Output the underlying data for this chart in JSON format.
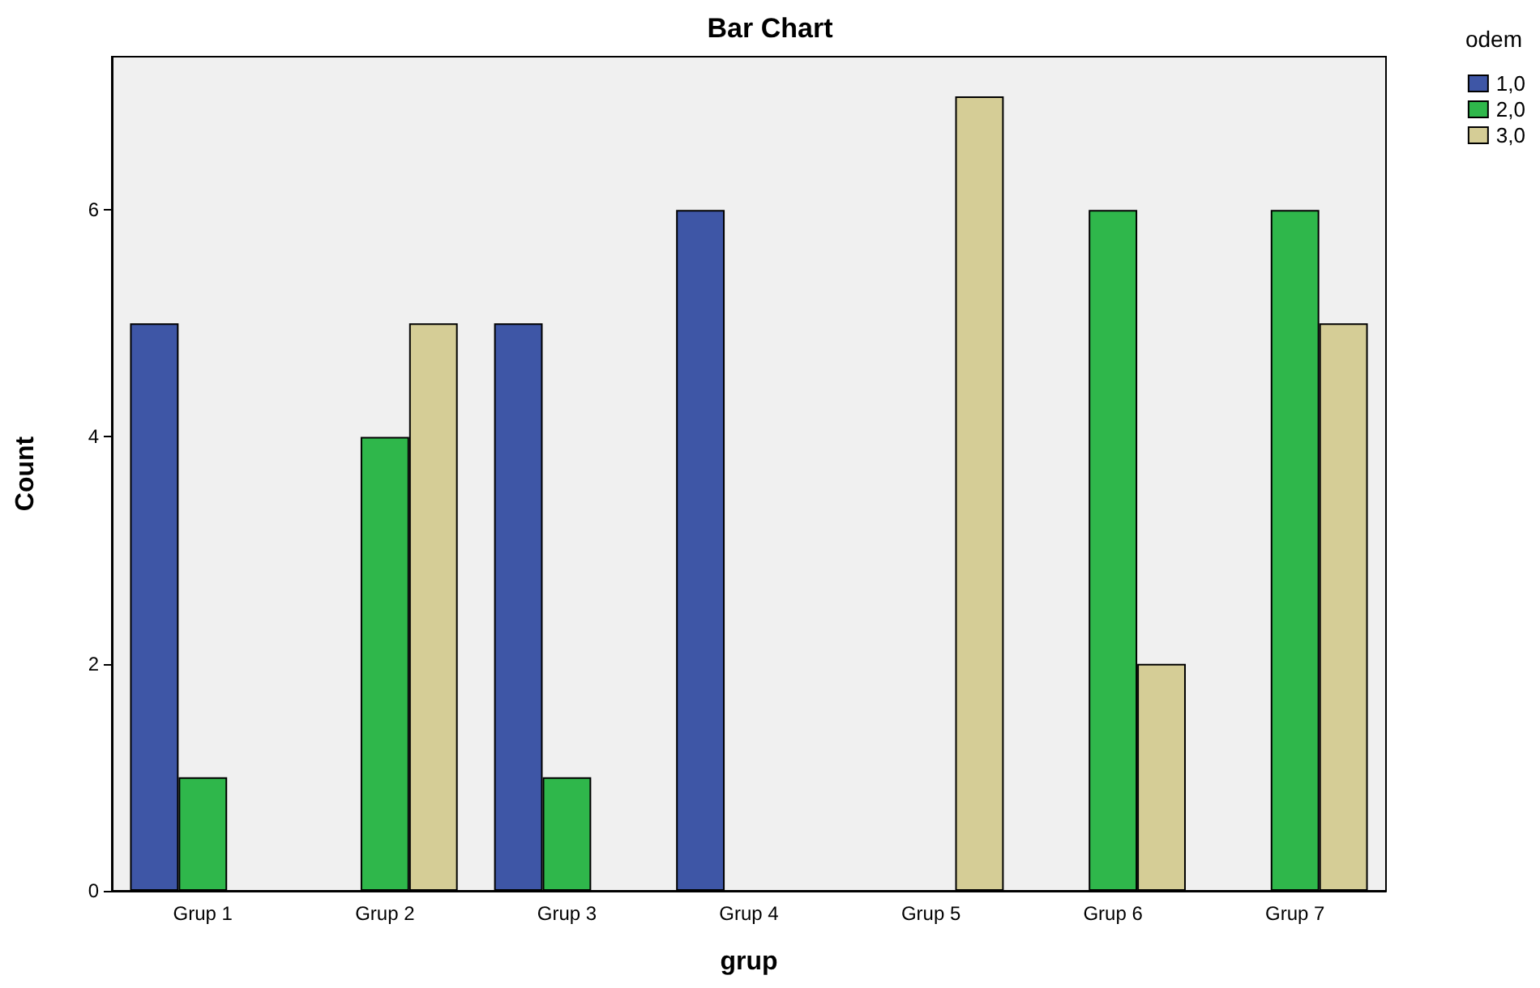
{
  "chart_data": {
    "type": "bar",
    "title": "Bar Chart",
    "xlabel": "grup",
    "ylabel": "Count",
    "legend_title": "odem",
    "categories": [
      "Grup 1",
      "Grup 2",
      "Grup 3",
      "Grup 4",
      "Grup 5",
      "Grup 6",
      "Grup 7"
    ],
    "series": [
      {
        "name": "1,0",
        "color": "#3e56a6",
        "values": [
          5,
          null,
          5,
          6,
          null,
          null,
          null
        ]
      },
      {
        "name": "2,0",
        "color": "#2fb74b",
        "values": [
          1,
          4,
          1,
          null,
          null,
          6,
          6
        ]
      },
      {
        "name": "3,0",
        "color": "#d5cd96",
        "values": [
          null,
          5,
          null,
          null,
          7,
          2,
          5
        ]
      }
    ],
    "ylim": [
      0,
      7.35
    ],
    "yticks": [
      0,
      2,
      4,
      6
    ],
    "grid": false,
    "legend": "top right"
  }
}
